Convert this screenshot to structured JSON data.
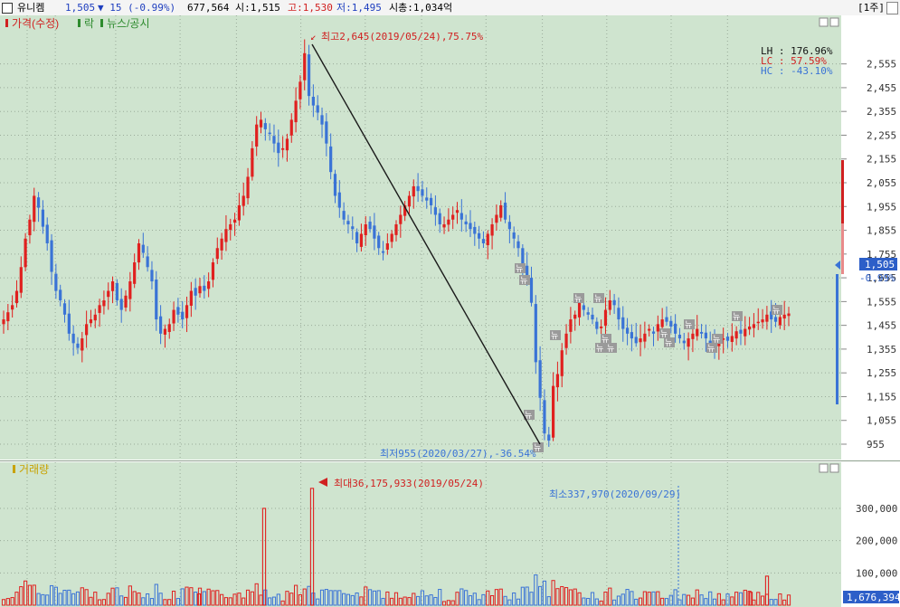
{
  "header": {
    "stock_name": "유니켐",
    "price": "1,505",
    "change": "▼ 15 (-0.99%)",
    "volume": "677,564",
    "open": "시:1,515",
    "high": "고:1,530",
    "low": "저:1,495",
    "mktcap": "시총:1,034억",
    "unit_button": "[1주]"
  },
  "legend": {
    "price_label": "가격(수정)",
    "rak_label": "락",
    "news_label": "뉴스/공시",
    "volume_label": "거래량"
  },
  "stats": {
    "lh": "LH : 176.96%",
    "lc": "LC : 57.59%",
    "hc": "HC : -43.10%"
  },
  "annotations": {
    "high": "최고2,645(2019/05/24),75.75%",
    "low": "최저955(2020/03/27),-36.54%",
    "vol_max": "최대36,175,933(2019/05/24)",
    "vol_min": "최소337,970(2020/09/29)",
    "news_marker": "뉴"
  },
  "current": {
    "price_tag": "1,505",
    "pct_tag": "-0.99%",
    "volume_tag": "1,676,394"
  },
  "colors": {
    "background": "#cfe4cf",
    "up": "#e0201f",
    "down": "#3a73d6",
    "grid": "#9aab9a"
  },
  "chart_data": [
    {
      "type": "candlestick",
      "title": "가격(수정)",
      "ylim": [
        905,
        2660
      ],
      "y_ticks": [
        "955",
        "1,055",
        "1,155",
        "1,255",
        "1,355",
        "1,455",
        "1,555",
        "1,655",
        "1,755",
        "1,855",
        "1,955",
        "2,055",
        "2,155",
        "2,255",
        "2,355",
        "2,455",
        "2,555"
      ],
      "close": [
        1480,
        1510,
        1540,
        1600,
        1700,
        1820,
        1900,
        2000,
        1950,
        1870,
        1800,
        1680,
        1600,
        1560,
        1500,
        1420,
        1380,
        1360,
        1400,
        1460,
        1480,
        1500,
        1540,
        1560,
        1600,
        1640,
        1560,
        1520,
        1580,
        1640,
        1720,
        1800,
        1760,
        1700,
        1640,
        1480,
        1420,
        1440,
        1460,
        1520,
        1500,
        1480,
        1540,
        1600,
        1580,
        1620,
        1600,
        1640,
        1720,
        1780,
        1820,
        1860,
        1880,
        1900,
        1960,
        2000,
        2080,
        2200,
        2300,
        2320,
        2280,
        2260,
        2220,
        2180,
        2200,
        2240,
        2320,
        2400,
        2480,
        2600,
        2420,
        2380,
        2350,
        2300,
        2220,
        2100,
        2000,
        1950,
        1900,
        1880,
        1860,
        1800,
        1840,
        1880,
        1860,
        1820,
        1780,
        1760,
        1800,
        1840,
        1880,
        1920,
        1960,
        2000,
        2040,
        2020,
        2000,
        1980,
        1960,
        1920,
        1880,
        1880,
        1900,
        1920,
        1940,
        1900,
        1880,
        1860,
        1840,
        1820,
        1800,
        1840,
        1880,
        1920,
        1960,
        1900,
        1860,
        1820,
        1780,
        1700,
        1650,
        1550,
        1300,
        1150,
        1000,
        970,
        1200,
        1250,
        1350,
        1420,
        1480,
        1500,
        1550,
        1520,
        1500,
        1480,
        1440,
        1450,
        1520,
        1560,
        1540,
        1480,
        1440,
        1420,
        1400,
        1380,
        1400,
        1420,
        1440,
        1420,
        1460,
        1480,
        1470,
        1450,
        1420,
        1400,
        1380,
        1400,
        1420,
        1440,
        1420,
        1400,
        1380,
        1360,
        1380,
        1400,
        1390,
        1410,
        1430,
        1420,
        1440,
        1450,
        1460,
        1470,
        1480,
        1500,
        1480,
        1470,
        1490,
        1500,
        1505
      ],
      "high_point": {
        "price": 2645,
        "date": "2019/05/24",
        "pct": 75.75
      },
      "low_point": {
        "price": 955,
        "date": "2020/03/27",
        "pct": -36.54
      },
      "last": 1505
    },
    {
      "type": "bar",
      "title": "거래량",
      "ylim": [
        0,
        370000
      ],
      "y_ticks": [
        "100,000",
        "200,000",
        "300,000"
      ],
      "max": {
        "value": 36175933,
        "date": "2019/05/24"
      },
      "min": {
        "value": 337970,
        "date": "2020/09/29"
      },
      "last": 1676394
    }
  ]
}
